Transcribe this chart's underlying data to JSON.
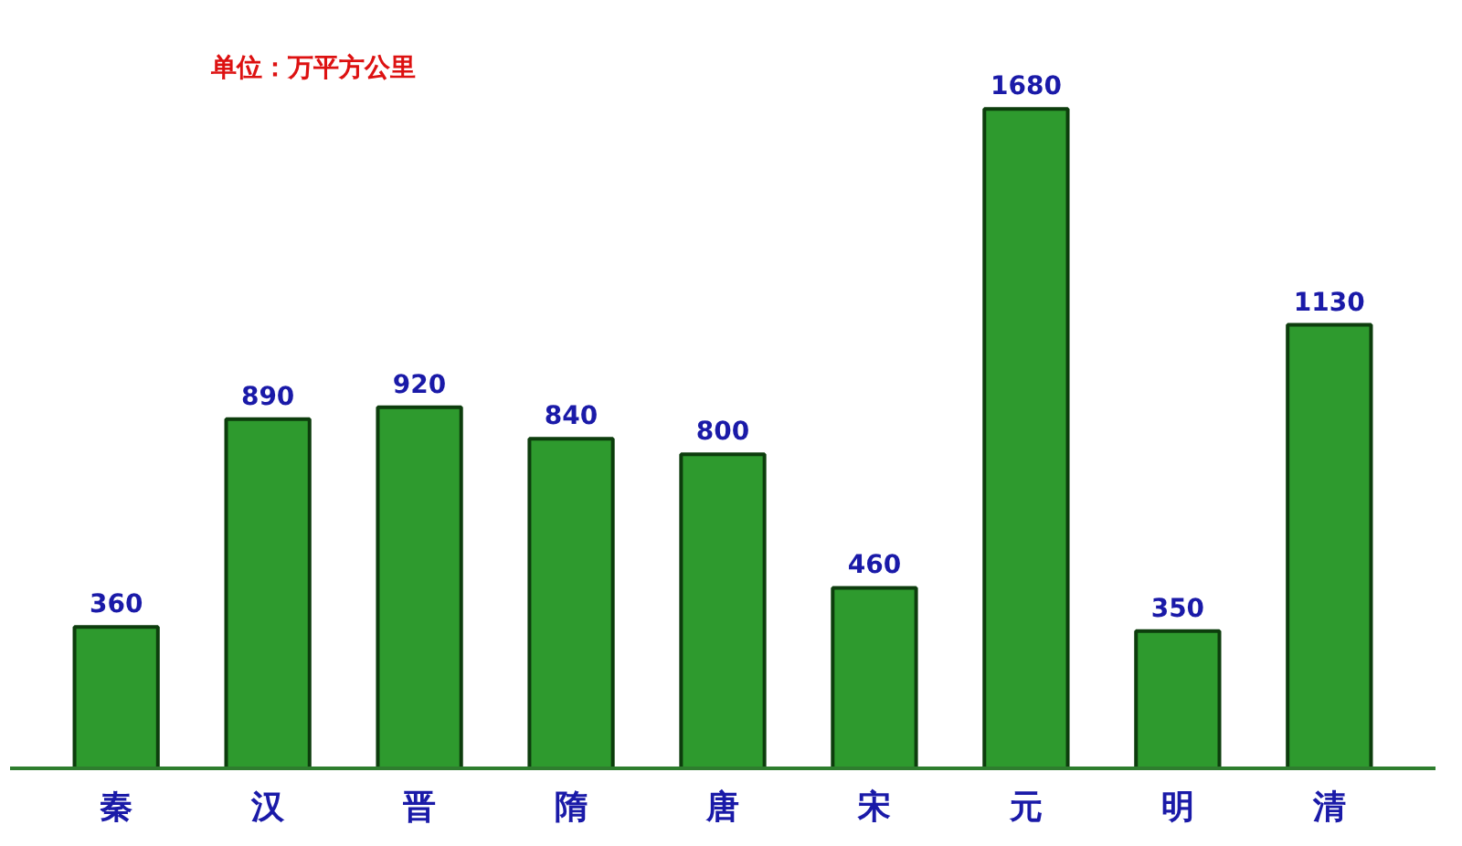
{
  "chart_data": {
    "type": "bar",
    "categories": [
      "秦",
      "汉",
      "晋",
      "隋",
      "唐",
      "宋",
      "元",
      "明",
      "清"
    ],
    "values": [
      360,
      890,
      920,
      840,
      800,
      460,
      1680,
      350,
      1130
    ],
    "color": "#2e9a2e",
    "data_labels": true,
    "annotations": [
      "单位：万平方公里"
    ],
    "grid": false
  }
}
